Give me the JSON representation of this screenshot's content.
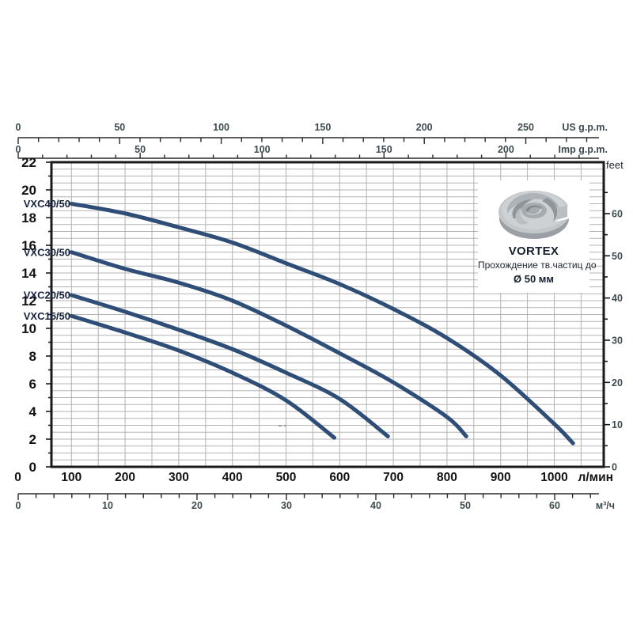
{
  "chart_data": {
    "type": "line",
    "description": "Submersible vortex pump performance curves (head vs flow)",
    "series": [
      {
        "name": "VXC40/50",
        "points": [
          [
            100,
            19.0
          ],
          [
            200,
            18.3
          ],
          [
            300,
            17.3
          ],
          [
            400,
            16.2
          ],
          [
            500,
            14.7
          ],
          [
            600,
            13.2
          ],
          [
            700,
            11.4
          ],
          [
            800,
            9.3
          ],
          [
            900,
            6.6
          ],
          [
            1000,
            3.1
          ],
          [
            1035,
            1.7
          ]
        ]
      },
      {
        "name": "VXC30/50",
        "points": [
          [
            100,
            15.5
          ],
          [
            200,
            14.3
          ],
          [
            300,
            13.3
          ],
          [
            400,
            12.0
          ],
          [
            500,
            10.2
          ],
          [
            600,
            8.2
          ],
          [
            700,
            6.1
          ],
          [
            800,
            3.6
          ],
          [
            836,
            2.2
          ]
        ]
      },
      {
        "name": "VXC20/50",
        "points": [
          [
            100,
            12.4
          ],
          [
            200,
            11.2
          ],
          [
            300,
            9.9
          ],
          [
            400,
            8.5
          ],
          [
            500,
            6.8
          ],
          [
            600,
            4.9
          ],
          [
            690,
            2.2
          ]
        ]
      },
      {
        "name": "VXC15/50",
        "points": [
          [
            100,
            10.9
          ],
          [
            200,
            9.7
          ],
          [
            300,
            8.4
          ],
          [
            400,
            6.8
          ],
          [
            500,
            4.8
          ],
          [
            590,
            2.1
          ]
        ]
      }
    ],
    "axes": {
      "x_top_us": {
        "label": "US g.p.m.",
        "major_ticks": [
          0,
          50,
          100,
          150,
          200,
          250
        ],
        "minor_step": 10,
        "max": 280
      },
      "x_top_imp": {
        "label": "Imp g.p.m.",
        "major_ticks": [
          0,
          50,
          100,
          150,
          200
        ],
        "minor_step": 10,
        "max": 230
      },
      "x_bottom_lmin": {
        "label": "л/мин",
        "major_ticks": [
          0,
          100,
          200,
          300,
          400,
          500,
          600,
          700,
          800,
          900,
          1000
        ],
        "range": [
          0,
          1090
        ],
        "grid_step": 50
      },
      "x_bottom_m3h": {
        "label": "м³/ч",
        "major_ticks": [
          0,
          10,
          20,
          30,
          40,
          50,
          60
        ],
        "minor_step": 2,
        "max": 64
      },
      "y_left_m": {
        "label": "",
        "major_ticks": [
          0,
          2,
          4,
          6,
          8,
          10,
          12,
          14,
          16,
          18,
          20,
          22
        ],
        "minor_step": 1,
        "range": [
          0,
          22
        ],
        "grid_step": 0.5
      },
      "y_right_feet": {
        "label": "feet",
        "major_ticks": [
          0,
          10,
          20,
          30,
          40,
          50,
          60
        ],
        "minor_step": 5,
        "max": 65
      }
    },
    "legend_position": "curve-start-labels",
    "grid": true
  },
  "annotation_box": {
    "title": "VORTEX",
    "line1": "Прохождение тв.частиц до",
    "line2": "Ø 50 мм",
    "icon": "vortex-impeller"
  },
  "colors": {
    "curve": "#2e4d77",
    "curve_label": "#15233c",
    "grid": "#b3b3b3",
    "frame": "#1a1a1a",
    "axis_line": "#2a2a2a",
    "small_tick_text": "#3d4a4f",
    "bold_tick_text": "#121212",
    "impeller_light": "#cdd1d4",
    "impeller_mid": "#aeb3b7",
    "impeller_dark": "#8f959a"
  }
}
